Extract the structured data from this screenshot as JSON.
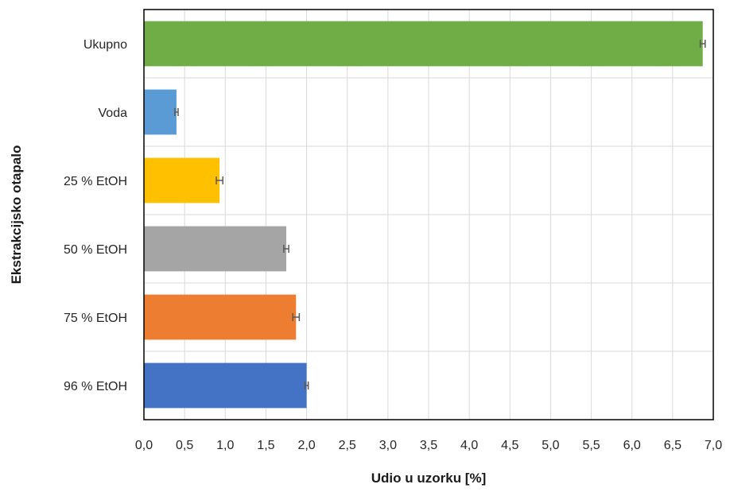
{
  "chart_data": {
    "type": "bar",
    "orientation": "horizontal",
    "title": "",
    "xlabel": "Udio u uzorku [%]",
    "ylabel": "Ekstrakcijsko otapalo",
    "categories": [
      "Ukupno",
      "Voda",
      "25 % EtOH",
      "50 % EtOH",
      "75 % EtOH",
      "96 % EtOH"
    ],
    "values": [
      6.87,
      0.4,
      0.93,
      1.75,
      1.87,
      2.0
    ],
    "errors": [
      0.03,
      0.02,
      0.04,
      0.03,
      0.04,
      0.02
    ],
    "colors": [
      "#70ad47",
      "#5b9bd5",
      "#ffc000",
      "#a5a5a5",
      "#ed7d31",
      "#4472c4"
    ],
    "xlim": [
      0,
      7
    ],
    "xticks": [
      "0,0",
      "0,5",
      "1,0",
      "1,5",
      "2,0",
      "2,5",
      "3,0",
      "3,5",
      "4,0",
      "4,5",
      "5,0",
      "5,5",
      "6,0",
      "6,5",
      "7,0"
    ],
    "grid": true,
    "legend": "none"
  }
}
